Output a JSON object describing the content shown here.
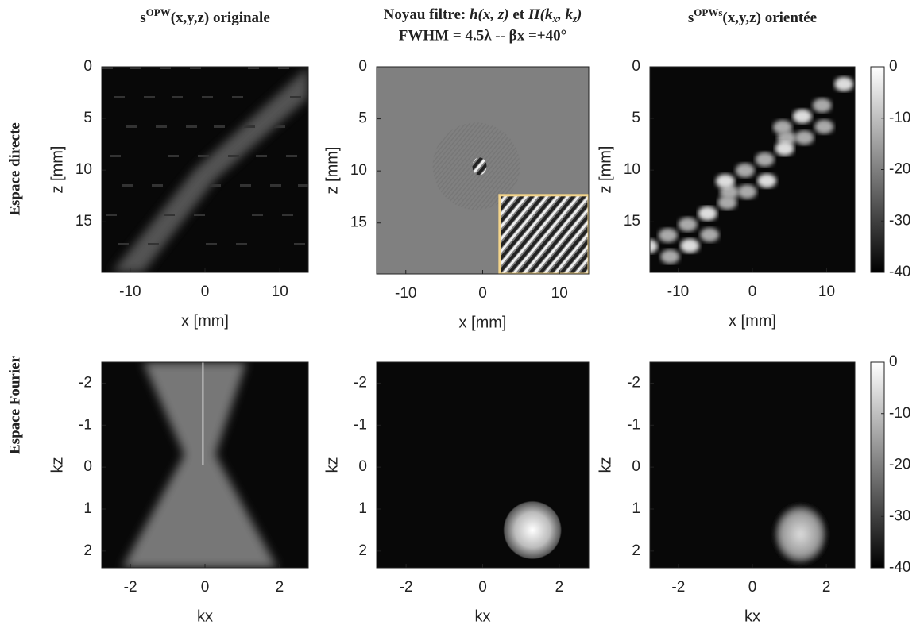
{
  "row_labels": [
    "Espace directe",
    "Espace Fourier"
  ],
  "chart_data": [
    {
      "type": "image",
      "title": [
        {
          "text": "s"
        },
        {
          "text": "OPW",
          "style": "sup"
        },
        {
          "text": "(x,y,z) originale"
        }
      ],
      "xlabel": "x [mm]",
      "ylabel": "z [mm]",
      "xlim": [
        -13.8,
        13.8
      ],
      "ylim": [
        19.9,
        0
      ],
      "xticks": [
        -10,
        0,
        10
      ],
      "yticks": [
        0,
        5,
        10,
        15
      ]
    },
    {
      "type": "image",
      "title": [
        {
          "text": "Noyau filtre: "
        },
        {
          "text": "h(x, z)",
          "style": "it"
        },
        {
          "text": " et "
        },
        {
          "text": "H(k",
          "style": "it"
        },
        {
          "text": "x",
          "style": "sub"
        },
        {
          "text": ", k",
          "style": "it"
        },
        {
          "text": "z",
          "style": "sub"
        },
        {
          "text": ")",
          "style": "it"
        }
      ],
      "subtitle": "FWHM = 4.5λ  -- βx =+40°",
      "xlabel": "x [mm]",
      "ylabel": "z [mm]",
      "xlim": [
        -13.8,
        13.8
      ],
      "ylim": [
        19.9,
        0
      ],
      "xticks": [
        -10,
        0,
        10
      ],
      "yticks": [
        0,
        5,
        10,
        15
      ]
    },
    {
      "type": "image",
      "title": [
        {
          "text": "s"
        },
        {
          "text": "OPWs",
          "style": "sup"
        },
        {
          "text": "(x,y,z) orientée"
        }
      ],
      "xlabel": "x [mm]",
      "ylabel": "z [mm]",
      "xlim": [
        -13.8,
        13.8
      ],
      "ylim": [
        19.9,
        0
      ],
      "xticks": [
        -10,
        0,
        10
      ],
      "yticks": [
        0,
        5,
        10,
        15
      ],
      "colorbar": {
        "lim": [
          -40,
          0
        ],
        "ticks": [
          0,
          -10,
          -20,
          -30,
          -40
        ]
      }
    },
    {
      "type": "image",
      "xlabel": "kx",
      "ylabel": "kz",
      "xlim": [
        -2.77,
        2.77
      ],
      "ylim": [
        2.4,
        -2.5
      ],
      "xticks": [
        -2,
        0,
        2
      ],
      "yticks": [
        -2,
        -1,
        0,
        1,
        2
      ]
    },
    {
      "type": "image",
      "xlabel": "kx",
      "ylabel": "kz",
      "xlim": [
        -2.77,
        2.77
      ],
      "ylim": [
        2.4,
        -2.5
      ],
      "xticks": [
        -2,
        0,
        2
      ],
      "yticks": [
        -2,
        -1,
        0,
        1,
        2
      ]
    },
    {
      "type": "image",
      "xlabel": "kx",
      "ylabel": "kz",
      "xlim": [
        -2.77,
        2.77
      ],
      "ylim": [
        2.4,
        -2.5
      ],
      "xticks": [
        -2,
        0,
        2
      ],
      "yticks": [
        -2,
        -1,
        0,
        1,
        2
      ],
      "colorbar": {
        "lim": [
          -40,
          0
        ],
        "ticks": [
          0,
          -10,
          -20,
          -30,
          -40
        ]
      }
    }
  ]
}
